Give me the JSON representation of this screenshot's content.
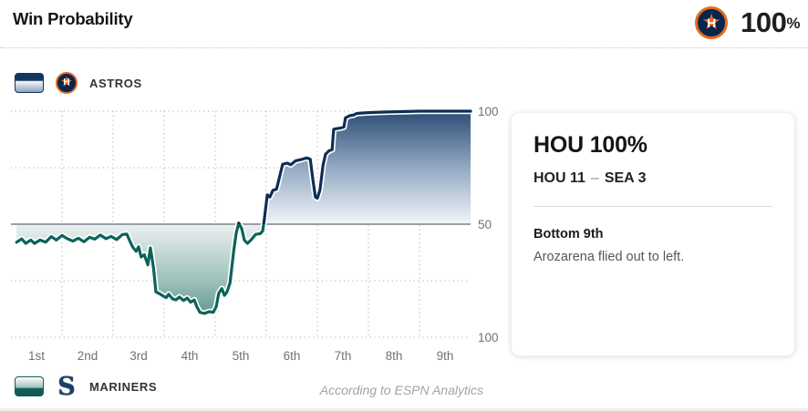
{
  "header": {
    "title": "Win Probability",
    "current_wp_value": "100",
    "current_wp_symbol": "%",
    "current_wp_team": "Astros"
  },
  "teams": {
    "astros": {
      "label": "ASTROS",
      "line_color": "#0e2d54",
      "accent": "#e66a1f"
    },
    "mariners": {
      "label": "MARINERS",
      "line_color": "#0c635a",
      "navy": "#1c3d6b"
    }
  },
  "chart_data": {
    "type": "line",
    "title": "Win Probability",
    "x_axis": {
      "unit": "inning",
      "range": [
        0,
        9
      ],
      "labels": [
        "1st",
        "2nd",
        "3rd",
        "4th",
        "5th",
        "6th",
        "7th",
        "8th",
        "9th"
      ]
    },
    "y_axis": {
      "top_label": "100",
      "mid_label": "50",
      "bottom_label": "100",
      "scale": "Astros win % (100 top) vs Mariners win % (100 bottom)",
      "baseline": 50
    },
    "grid": {
      "vertical_boundaries": [
        1,
        2,
        3,
        4,
        5,
        6,
        7,
        8
      ],
      "horizontal_wp": [
        100,
        75,
        25,
        0
      ],
      "color": "#babfc4",
      "baseline_color": "#989fa7"
    },
    "series": [
      {
        "name": "Astros win probability",
        "color_above_50": "#0e2d54",
        "color_below_50": "#0c635a",
        "fill_above_top": "#2d4d75",
        "fill_below_bottom": "#3e7d75",
        "points": [
          [
            0.11,
            42
          ],
          [
            0.21,
            43.5
          ],
          [
            0.29,
            41.5
          ],
          [
            0.39,
            43
          ],
          [
            0.46,
            41.5
          ],
          [
            0.57,
            43
          ],
          [
            0.68,
            42
          ],
          [
            0.79,
            44.5
          ],
          [
            0.89,
            43
          ],
          [
            1.0,
            45
          ],
          [
            1.11,
            43.5
          ],
          [
            1.21,
            42.5
          ],
          [
            1.32,
            43.8
          ],
          [
            1.43,
            42.2
          ],
          [
            1.54,
            44.2
          ],
          [
            1.64,
            43.4
          ],
          [
            1.75,
            45.2
          ],
          [
            1.86,
            43.6
          ],
          [
            1.96,
            44.6
          ],
          [
            2.07,
            43.2
          ],
          [
            2.18,
            45.4
          ],
          [
            2.27,
            45.6
          ],
          [
            2.32,
            43
          ],
          [
            2.38,
            40
          ],
          [
            2.45,
            38
          ],
          [
            2.5,
            40
          ],
          [
            2.55,
            35.5
          ],
          [
            2.61,
            36.5
          ],
          [
            2.68,
            32
          ],
          [
            2.73,
            39.5
          ],
          [
            2.79,
            31
          ],
          [
            2.84,
            20
          ],
          [
            2.89,
            19.5
          ],
          [
            2.96,
            18.5
          ],
          [
            3.04,
            17.5
          ],
          [
            3.09,
            19
          ],
          [
            3.16,
            17
          ],
          [
            3.23,
            16.5
          ],
          [
            3.3,
            17.8
          ],
          [
            3.38,
            16.2
          ],
          [
            3.45,
            17.3
          ],
          [
            3.52,
            15.5
          ],
          [
            3.59,
            16.5
          ],
          [
            3.64,
            13.5
          ],
          [
            3.7,
            11
          ],
          [
            3.79,
            10.5
          ],
          [
            3.88,
            11.3
          ],
          [
            3.96,
            11
          ],
          [
            4.02,
            13.5
          ],
          [
            4.07,
            19.5
          ],
          [
            4.13,
            21.5
          ],
          [
            4.18,
            18.5
          ],
          [
            4.23,
            20
          ],
          [
            4.29,
            24
          ],
          [
            4.36,
            38
          ],
          [
            4.41,
            46
          ],
          [
            4.46,
            50.5
          ],
          [
            4.52,
            48
          ],
          [
            4.57,
            43
          ],
          [
            4.63,
            41.5
          ],
          [
            4.7,
            43
          ],
          [
            4.79,
            45.5
          ],
          [
            4.88,
            45.8
          ],
          [
            4.93,
            47
          ],
          [
            4.96,
            52
          ],
          [
            5.02,
            63
          ],
          [
            5.07,
            62
          ],
          [
            5.13,
            65
          ],
          [
            5.2,
            65.5
          ],
          [
            5.25,
            70
          ],
          [
            5.32,
            76.5
          ],
          [
            5.41,
            77
          ],
          [
            5.48,
            76.3
          ],
          [
            5.57,
            78
          ],
          [
            5.68,
            78.6
          ],
          [
            5.79,
            79.3
          ],
          [
            5.86,
            78.8
          ],
          [
            5.91,
            70
          ],
          [
            5.96,
            62
          ],
          [
            6.0,
            61.5
          ],
          [
            6.05,
            65
          ],
          [
            6.11,
            76
          ],
          [
            6.16,
            81
          ],
          [
            6.23,
            82.5
          ],
          [
            6.29,
            83
          ],
          [
            6.32,
            92
          ],
          [
            6.39,
            92.3
          ],
          [
            6.46,
            92.6
          ],
          [
            6.52,
            93
          ],
          [
            6.55,
            97
          ],
          [
            6.63,
            98
          ],
          [
            6.71,
            98.3
          ],
          [
            6.77,
            99
          ],
          [
            6.89,
            99.2
          ],
          [
            7.04,
            99.4
          ],
          [
            7.29,
            99.6
          ],
          [
            7.64,
            99.8
          ],
          [
            8.0,
            100
          ],
          [
            9.0,
            100
          ]
        ]
      }
    ],
    "footnote": "According to ESPN Analytics"
  },
  "info_card": {
    "headline": "HOU 100%",
    "score": {
      "team1": "HOU 11",
      "dash": "–",
      "team2": "SEA 3"
    },
    "inning": "Bottom 9th",
    "play": "Arozarena flied out to left."
  },
  "icons": {
    "astros_star": "★",
    "astros_h": "H",
    "mariners_s": "S"
  }
}
